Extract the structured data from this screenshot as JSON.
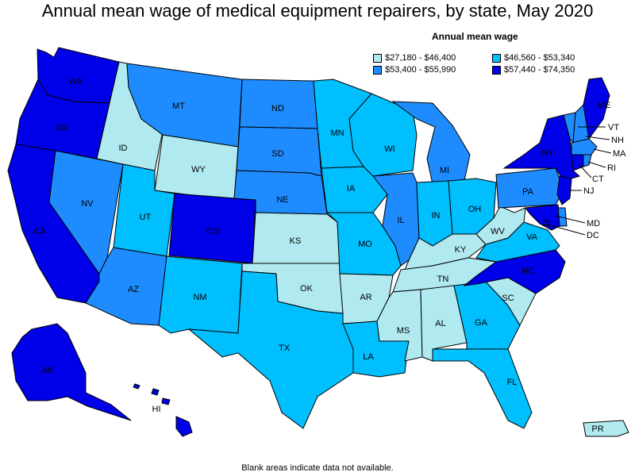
{
  "title": "Annual mean wage of medical equipment repairers, by state, May 2020",
  "legend": {
    "title": "Annual mean wage",
    "items": [
      {
        "range": "$27,180 - $46,400",
        "color": "#b0eaf0"
      },
      {
        "range": "$46,560 - $53,340",
        "color": "#00bfff"
      },
      {
        "range": "$53,400 - $55,990",
        "color": "#1e8cff"
      },
      {
        "range": "$57,440 - $74,350",
        "color": "#0000e8"
      }
    ]
  },
  "note": "Blank areas indicate data not available.",
  "states": {
    "WA": {
      "label": "WA",
      "tier": 3
    },
    "OR": {
      "label": "OR",
      "tier": 3
    },
    "CA": {
      "label": "CA",
      "tier": 3
    },
    "NV": {
      "label": "NV",
      "tier": 2
    },
    "ID": {
      "label": "ID",
      "tier": 0
    },
    "MT": {
      "label": "MT",
      "tier": 2
    },
    "WY": {
      "label": "WY",
      "tier": 0
    },
    "UT": {
      "label": "UT",
      "tier": 1
    },
    "AZ": {
      "label": "AZ",
      "tier": 2
    },
    "CO": {
      "label": "CO",
      "tier": 3
    },
    "NM": {
      "label": "NM",
      "tier": 1
    },
    "ND": {
      "label": "ND",
      "tier": 2
    },
    "SD": {
      "label": "SD",
      "tier": 2
    },
    "NE": {
      "label": "NE",
      "tier": 2
    },
    "KS": {
      "label": "KS",
      "tier": 0
    },
    "OK": {
      "label": "OK",
      "tier": 0
    },
    "TX": {
      "label": "TX",
      "tier": 1
    },
    "MN": {
      "label": "MN",
      "tier": 1
    },
    "IA": {
      "label": "IA",
      "tier": 1
    },
    "MO": {
      "label": "MO",
      "tier": 1
    },
    "AR": {
      "label": "AR",
      "tier": 0
    },
    "LA": {
      "label": "LA",
      "tier": 1
    },
    "WI": {
      "label": "WI",
      "tier": 1
    },
    "IL": {
      "label": "IL",
      "tier": 2
    },
    "MI": {
      "label": "MI",
      "tier": 2
    },
    "IN": {
      "label": "IN",
      "tier": 1
    },
    "OH": {
      "label": "OH",
      "tier": 1
    },
    "KY": {
      "label": "KY",
      "tier": 0
    },
    "TN": {
      "label": "TN",
      "tier": 0
    },
    "MS": {
      "label": "MS",
      "tier": 0
    },
    "AL": {
      "label": "AL",
      "tier": 0
    },
    "GA": {
      "label": "GA",
      "tier": 1
    },
    "FL": {
      "label": "FL",
      "tier": 1
    },
    "SC": {
      "label": "SC",
      "tier": 0
    },
    "NC": {
      "label": "NC",
      "tier": 3
    },
    "VA": {
      "label": "VA",
      "tier": 1
    },
    "WV": {
      "label": "WV",
      "tier": 0
    },
    "PA": {
      "label": "PA",
      "tier": 2
    },
    "NY": {
      "label": "NY",
      "tier": 3
    },
    "VT": {
      "label": "VT",
      "tier": 2
    },
    "NH": {
      "label": "NH",
      "tier": 2
    },
    "ME": {
      "label": "ME",
      "tier": 3
    },
    "MA": {
      "label": "MA",
      "tier": 2
    },
    "RI": {
      "label": "RI",
      "tier": 2
    },
    "CT": {
      "label": "CT",
      "tier": 3
    },
    "NJ": {
      "label": "NJ",
      "tier": 3
    },
    "DE": {
      "label": "",
      "tier": 2
    },
    "MD": {
      "label": "MD",
      "tier": 3
    },
    "DC": {
      "label": "DC",
      "tier": 3
    },
    "AK": {
      "label": "AK",
      "tier": 3
    },
    "HI": {
      "label": "HI",
      "tier": 3
    },
    "PR": {
      "label": "PR",
      "tier": 0
    }
  }
}
